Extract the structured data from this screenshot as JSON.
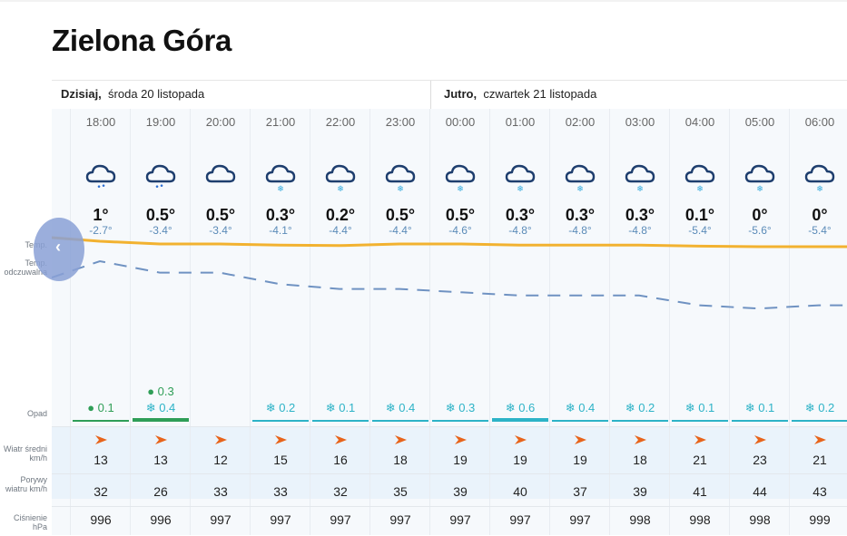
{
  "title": "Zielona Góra",
  "days": [
    {
      "label_bold": "Dzisiaj,",
      "label": "środa 20 listopada"
    },
    {
      "label_bold": "Jutro,",
      "label": "czwartek 21 listopada"
    }
  ],
  "row_labels": {
    "temp": "Temp.",
    "feels": "Temp. odczuwalna",
    "precip": "Opad",
    "wind": "Wiatr średni km/h",
    "gusts": "Porywy wiatru km/h",
    "pressure": "Ciśnienie hPa"
  },
  "colors": {
    "temperature_line": "#f2b230",
    "feels_line": "#6f92c2",
    "rain": "#2f9e57",
    "snow": "#2db3c7",
    "wind_arrow": "#e8641b",
    "icon_stroke": "#1e3e6e"
  },
  "hours": [
    {
      "time": "18:00",
      "icon": "cloud-rain-icon",
      "temp": "1°",
      "feels": "-2.7°",
      "precip": [
        {
          "kind": "rain",
          "value": "0.1"
        }
      ],
      "wind": "13",
      "gust": "32",
      "pressure": "996"
    },
    {
      "time": "19:00",
      "icon": "cloud-sleet-icon",
      "temp": "0.5°",
      "feels": "-3.4°",
      "precip": [
        {
          "kind": "rain",
          "value": "0.3"
        },
        {
          "kind": "snow",
          "value": "0.4"
        }
      ],
      "wind": "13",
      "gust": "26",
      "pressure": "996"
    },
    {
      "time": "20:00",
      "icon": "cloud-icon",
      "temp": "0.5°",
      "feels": "-3.4°",
      "precip": [],
      "wind": "12",
      "gust": "33",
      "pressure": "997"
    },
    {
      "time": "21:00",
      "icon": "cloud-snow-icon",
      "temp": "0.3°",
      "feels": "-4.1°",
      "precip": [
        {
          "kind": "snow",
          "value": "0.2"
        }
      ],
      "wind": "15",
      "gust": "33",
      "pressure": "997"
    },
    {
      "time": "22:00",
      "icon": "cloud-snow-icon",
      "temp": "0.2°",
      "feels": "-4.4°",
      "precip": [
        {
          "kind": "snow",
          "value": "0.1"
        }
      ],
      "wind": "16",
      "gust": "32",
      "pressure": "997"
    },
    {
      "time": "23:00",
      "icon": "cloud-snow-icon",
      "temp": "0.5°",
      "feels": "-4.4°",
      "precip": [
        {
          "kind": "snow",
          "value": "0.4"
        }
      ],
      "wind": "18",
      "gust": "35",
      "pressure": "997"
    },
    {
      "time": "00:00",
      "icon": "cloud-snow-icon",
      "temp": "0.5°",
      "feels": "-4.6°",
      "precip": [
        {
          "kind": "snow",
          "value": "0.3"
        }
      ],
      "wind": "19",
      "gust": "39",
      "pressure": "997"
    },
    {
      "time": "01:00",
      "icon": "cloud-snow-icon",
      "temp": "0.3°",
      "feels": "-4.8°",
      "precip": [
        {
          "kind": "snow",
          "value": "0.6"
        }
      ],
      "wind": "19",
      "gust": "40",
      "pressure": "997"
    },
    {
      "time": "02:00",
      "icon": "cloud-snow-icon",
      "temp": "0.3°",
      "feels": "-4.8°",
      "precip": [
        {
          "kind": "snow",
          "value": "0.4"
        }
      ],
      "wind": "19",
      "gust": "37",
      "pressure": "997"
    },
    {
      "time": "03:00",
      "icon": "cloud-snow-icon",
      "temp": "0.3°",
      "feels": "-4.8°",
      "precip": [
        {
          "kind": "snow",
          "value": "0.2"
        }
      ],
      "wind": "18",
      "gust": "39",
      "pressure": "998"
    },
    {
      "time": "04:00",
      "icon": "cloud-snow-icon",
      "temp": "0.1°",
      "feels": "-5.4°",
      "precip": [
        {
          "kind": "snow",
          "value": "0.1"
        }
      ],
      "wind": "21",
      "gust": "41",
      "pressure": "998"
    },
    {
      "time": "05:00",
      "icon": "cloud-snow-icon",
      "temp": "0°",
      "feels": "-5.6°",
      "precip": [
        {
          "kind": "snow",
          "value": "0.1"
        }
      ],
      "wind": "23",
      "gust": "44",
      "pressure": "998"
    },
    {
      "time": "06:00",
      "icon": "cloud-snow-icon",
      "temp": "0°",
      "feels": "-5.4°",
      "precip": [
        {
          "kind": "snow",
          "value": "0.2"
        }
      ],
      "wind": "21",
      "gust": "43",
      "pressure": "999"
    }
  ],
  "nav": {
    "prev_symbol": "‹"
  }
}
